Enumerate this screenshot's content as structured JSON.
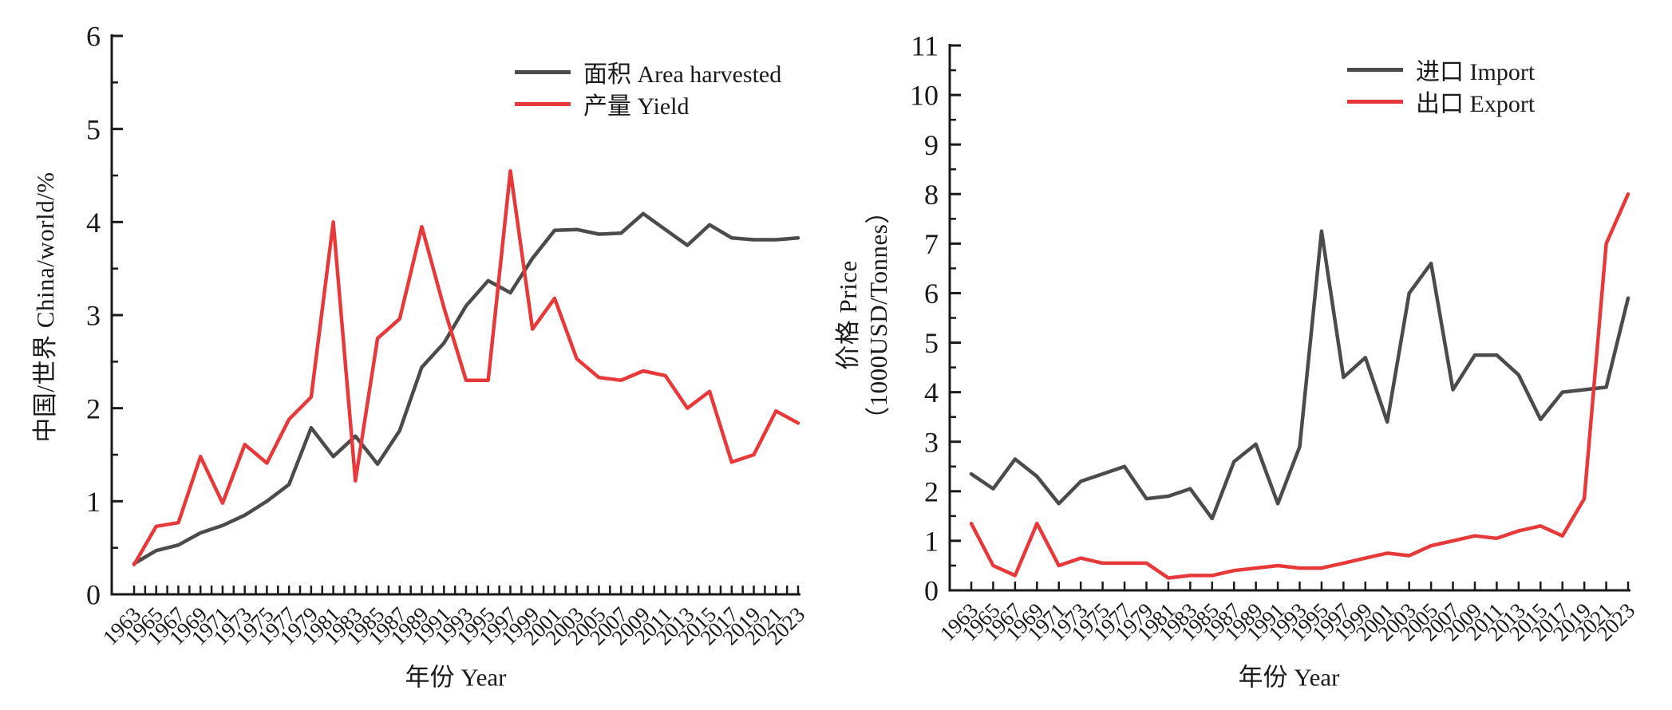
{
  "figure_colors": {
    "axis": "#1a1a1a",
    "text": "#1a1a1a",
    "gray_series": "#4d4a4a",
    "red_series": "#e8393a"
  },
  "chart_data": [
    {
      "type": "line",
      "panel": "left",
      "xlabel": "年份 Year",
      "ylabel": "中国/世界 China/world/%",
      "ylim": [
        0,
        6
      ],
      "ytick_interval": 1,
      "y_minor_tick_interval": 0.5,
      "xtick_label_rotation": 45,
      "grid": false,
      "legend_position": "inside-top-right",
      "x": [
        1963,
        1965,
        1967,
        1969,
        1971,
        1973,
        1975,
        1977,
        1979,
        1981,
        1983,
        1985,
        1987,
        1989,
        1991,
        1993,
        1995,
        1997,
        1999,
        2001,
        2003,
        2005,
        2007,
        2009,
        2011,
        2013,
        2015,
        2017,
        2019,
        2021,
        2023
      ],
      "series": [
        {
          "name": "面积 Area harvested",
          "color": "#4d4a4a",
          "values": [
            0.33,
            0.47,
            0.53,
            0.66,
            0.74,
            0.85,
            1.0,
            1.18,
            1.79,
            1.48,
            1.7,
            1.4,
            1.76,
            2.44,
            2.7,
            3.1,
            3.37,
            3.24,
            3.61,
            3.91,
            3.92,
            3.87,
            3.88,
            4.09,
            3.92,
            3.75,
            3.97,
            3.83,
            3.81,
            3.81,
            3.83
          ]
        },
        {
          "name": "产量 Yield",
          "color": "#e8393a",
          "values": [
            0.32,
            0.73,
            0.77,
            1.48,
            0.98,
            1.61,
            1.41,
            1.88,
            2.12,
            4.0,
            1.22,
            2.75,
            2.96,
            3.95,
            3.08,
            2.3,
            2.3,
            4.55,
            2.85,
            3.18,
            2.53,
            2.33,
            2.3,
            2.4,
            2.35,
            2.0,
            2.18,
            1.42,
            1.5,
            1.97,
            1.84
          ]
        }
      ]
    },
    {
      "type": "line",
      "panel": "right",
      "xlabel": "年份 Year",
      "ylabel": "价格 Price（1000USD/Tonnes）",
      "ylabel_lines": [
        "价格 Price",
        "（1000USD/Tonnes）"
      ],
      "ylim": [
        0,
        11
      ],
      "ytick_interval": 1,
      "y_minor_tick_interval": 0.5,
      "xtick_label_rotation": 45,
      "grid": false,
      "legend_position": "inside-top-right",
      "x": [
        1963,
        1965,
        1967,
        1969,
        1971,
        1973,
        1975,
        1977,
        1979,
        1981,
        1983,
        1985,
        1987,
        1989,
        1991,
        1993,
        1995,
        1997,
        1999,
        2001,
        2003,
        2005,
        2007,
        2009,
        2011,
        2013,
        2015,
        2017,
        2019,
        2021,
        2023
      ],
      "series": [
        {
          "name": "进口 Import",
          "color": "#4d4a4a",
          "values": [
            2.35,
            2.05,
            2.65,
            2.3,
            1.75,
            2.2,
            2.35,
            2.5,
            1.85,
            1.9,
            2.05,
            1.45,
            2.6,
            2.95,
            1.75,
            2.9,
            7.25,
            4.3,
            4.7,
            3.4,
            6.0,
            6.6,
            4.05,
            4.75,
            4.75,
            4.35,
            3.45,
            4.0,
            4.05,
            4.1,
            5.9
          ]
        },
        {
          "name": "出口 Export",
          "color": "#e8393a",
          "values": [
            1.35,
            0.5,
            0.3,
            1.35,
            0.5,
            0.65,
            0.55,
            0.55,
            0.55,
            0.25,
            0.3,
            0.3,
            0.4,
            0.45,
            0.5,
            0.45,
            0.45,
            0.55,
            0.65,
            0.75,
            0.7,
            0.9,
            1.0,
            1.1,
            1.05,
            1.2,
            1.3,
            1.1,
            1.85,
            7.0,
            8.0
          ]
        }
      ]
    }
  ]
}
